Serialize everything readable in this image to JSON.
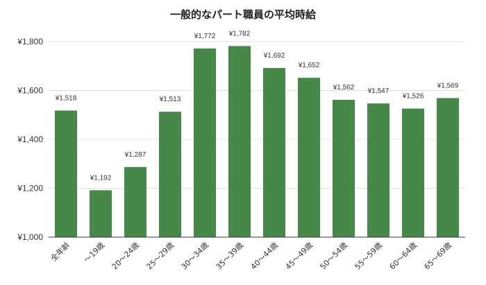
{
  "chart_data": {
    "type": "bar",
    "title": "一般的なパート職員の平均時給",
    "xlabel": "",
    "ylabel": "",
    "categories": [
      "全年齢",
      "～19歳",
      "20～24歳",
      "25～29歳",
      "30～34歳",
      "35～39歳",
      "40～44歳",
      "45～49歳",
      "50～54歳",
      "55～59歳",
      "60～64歳",
      "65～69歳"
    ],
    "values": [
      1518,
      1192,
      1287,
      1513,
      1772,
      1782,
      1692,
      1652,
      1562,
      1547,
      1526,
      1569
    ],
    "data_labels": [
      "¥1,518",
      "¥1,192",
      "¥1,287",
      "¥1,513",
      "¥1,772",
      "¥1,782",
      "¥1,692",
      "¥1,652",
      "¥1,562",
      "¥1,547",
      "¥1,526",
      "¥1,569"
    ],
    "ylim": [
      1000,
      1800
    ],
    "yticks": [
      1000,
      1200,
      1400,
      1600,
      1800
    ],
    "ytick_labels": [
      "¥1,000",
      "¥1,200",
      "¥1,400",
      "¥1,600",
      "¥1,800"
    ],
    "grid": true,
    "bar_color": "#468847",
    "grid_color": "#e0e0e0",
    "axis_color": "#333333"
  }
}
